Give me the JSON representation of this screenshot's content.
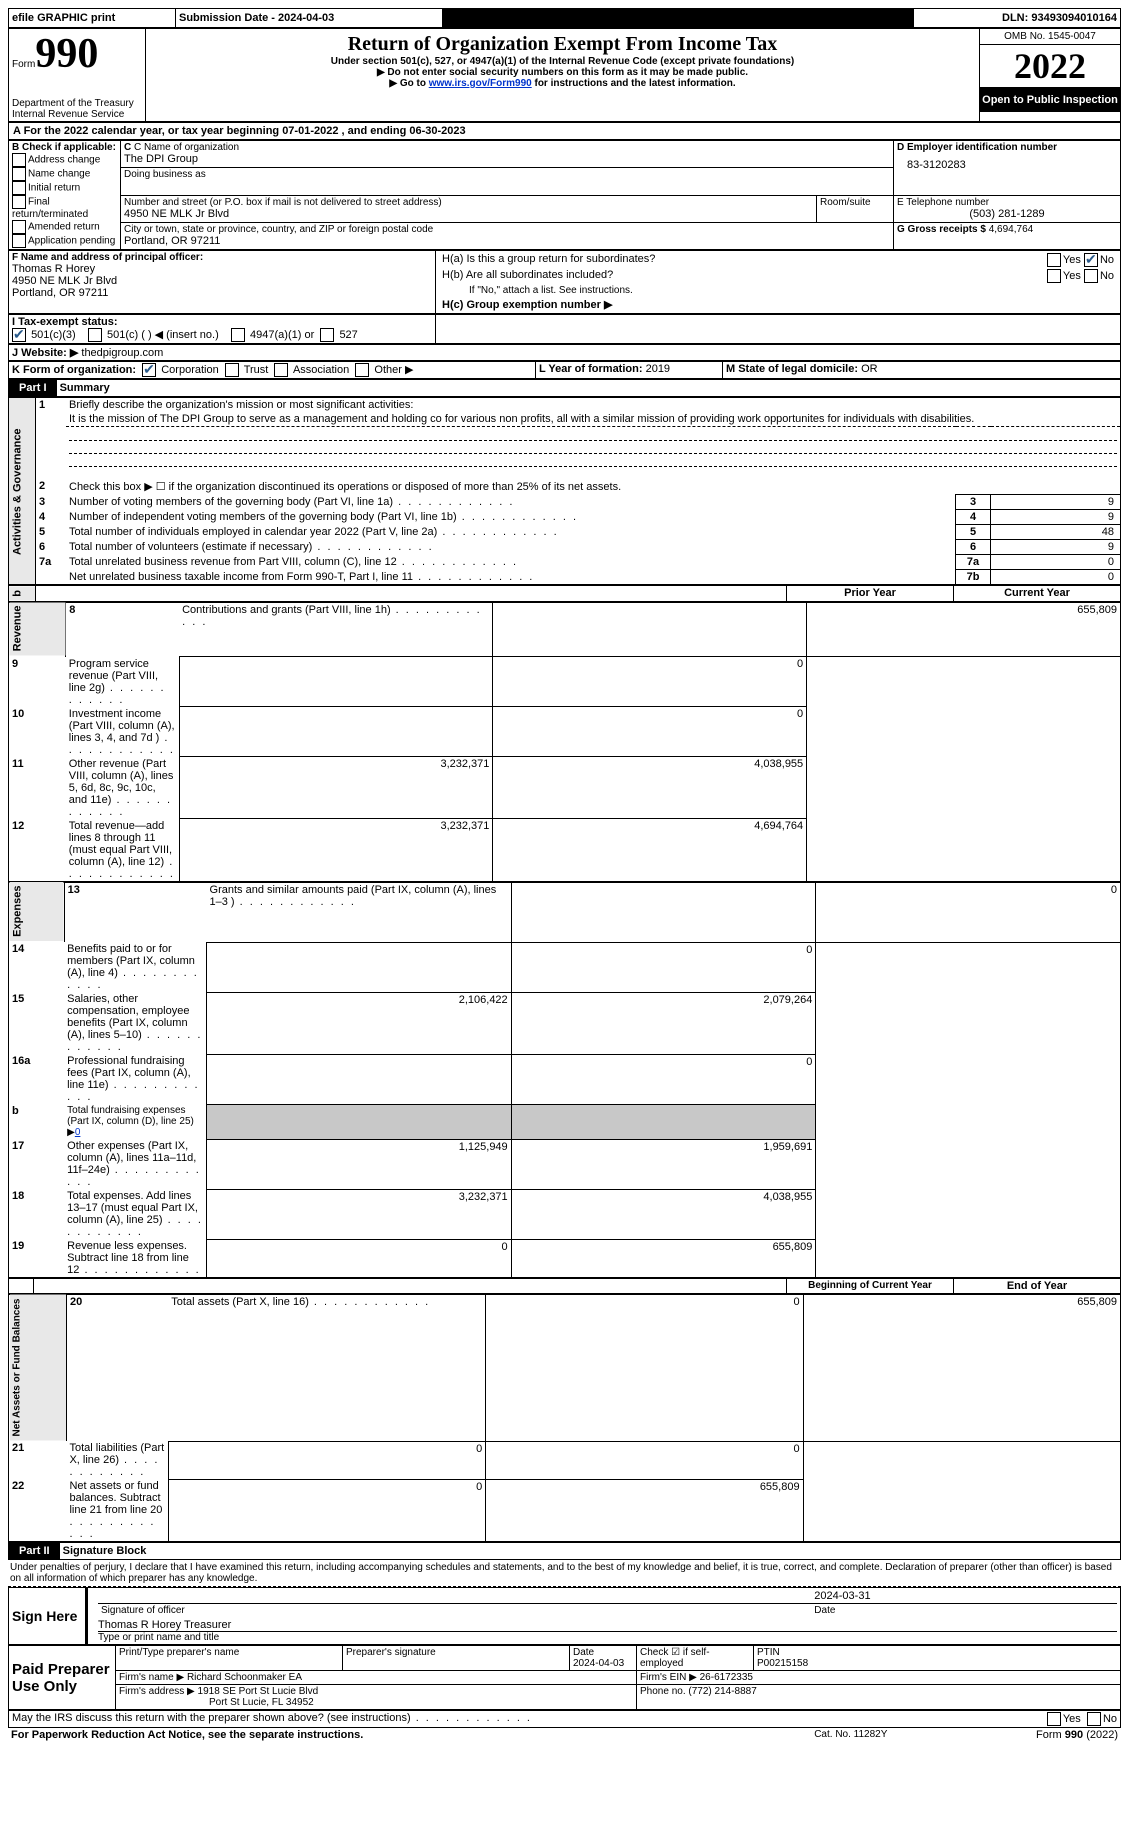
{
  "top_bar": {
    "efile": "efile GRAPHIC print",
    "submission": "Submission Date - 2024-04-03",
    "dln": "DLN: 93493094010164"
  },
  "header": {
    "form": "Form",
    "num": "990",
    "title": "Return of Organization Exempt From Income Tax",
    "sub1": "Under section 501(c), 527, or 4947(a)(1) of the Internal Revenue Code (except private foundations)",
    "sub2": "▶ Do not enter social security numbers on this form as it may be made public.",
    "sub3_pre": "▶ Go to ",
    "sub3_link": "www.irs.gov/Form990",
    "sub3_post": " for instructions and the latest information.",
    "dept": "Department of the Treasury",
    "irs": "Internal Revenue Service",
    "omb": "OMB No. 1545-0047",
    "year": "2022",
    "open": "Open to Public Inspection"
  },
  "A": {
    "line": "A For the 2022 calendar year, or tax year beginning 07-01-2022    , and ending 06-30-2023"
  },
  "B": {
    "hdr": "B Check if applicable:",
    "items": [
      "Address change",
      "Name change",
      "Initial return",
      "Final return/terminated",
      "Amended return",
      "Application pending"
    ]
  },
  "C": {
    "label": "C Name of organization",
    "name": "The DPI Group",
    "dba_label": "Doing business as",
    "street_label": "Number and street (or P.O. box if mail is not delivered to street address)",
    "room_label": "Room/suite",
    "street": "4950 NE MLK Jr Blvd",
    "city_label": "City or town, state or province, country, and ZIP or foreign postal code",
    "city": "Portland, OR  97211"
  },
  "D": {
    "label": "D Employer identification number",
    "val": "83-3120283"
  },
  "E": {
    "label": "E Telephone number",
    "val": "(503) 281-1289"
  },
  "G": {
    "label": "G Gross receipts $",
    "val": "4,694,764"
  },
  "F": {
    "label": "F  Name and address of principal officer:",
    "name": "Thomas R Horey",
    "street": "4950 NE MLK Jr Blvd",
    "city": "Portland, OR  97211"
  },
  "H": {
    "a": "H(a)  Is this a group return for subordinates?",
    "b": "H(b)  Are all subordinates included?",
    "note": "If \"No,\" attach a list. See instructions.",
    "c": "H(c)  Group exemption number ▶",
    "yes": "Yes",
    "no": "No"
  },
  "I": {
    "label": "I  Tax-exempt status:",
    "c3": "501(c)(3)",
    "c": "501(c) (  ) ◀ (insert no.)",
    "a1": "4947(a)(1) or",
    "s527": "527"
  },
  "J": {
    "label": "J  Website: ▶",
    "val": " thedpigroup.com"
  },
  "K": {
    "label": "K Form of organization:",
    "corp": "Corporation",
    "trust": "Trust",
    "assoc": "Association",
    "other": "Other ▶"
  },
  "L": {
    "label": "L Year of formation:",
    "val": "2019"
  },
  "M": {
    "label": "M State of legal domicile:",
    "val": "OR"
  },
  "part1": {
    "label": "Part I",
    "title": "Summary"
  },
  "summary": {
    "l1": "Briefly describe the organization's mission or most significant activities:",
    "mission": "It is the mission of The DPI Group to serve as a management and holding co for various non profits, all with a similar mission of providing work opportunites for individuals with disabilities.",
    "l2": "Check this box ▶ ☐  if the organization discontinued its operations or disposed of more than 25% of its net assets.",
    "rows": [
      {
        "n": "3",
        "t": "Number of voting members of the governing body (Part VI, line 1a)",
        "b": "3",
        "v": "9"
      },
      {
        "n": "4",
        "t": "Number of independent voting members of the governing body (Part VI, line 1b)",
        "b": "4",
        "v": "9"
      },
      {
        "n": "5",
        "t": "Total number of individuals employed in calendar year 2022 (Part V, line 2a)",
        "b": "5",
        "v": "48"
      },
      {
        "n": "6",
        "t": "Total number of volunteers (estimate if necessary)",
        "b": "6",
        "v": "9"
      },
      {
        "n": "7a",
        "t": "Total unrelated business revenue from Part VIII, column (C), line 12",
        "b": "7a",
        "v": "0"
      },
      {
        "n": "",
        "t": "Net unrelated business taxable income from Form 990-T, Part I, line 11",
        "b": "7b",
        "v": "0"
      }
    ]
  },
  "columns": {
    "prior": "Prior Year",
    "current": "Current Year",
    "boy": "Beginning of Current Year",
    "eoy": "End of Year"
  },
  "revenue": [
    {
      "n": "8",
      "t": "Contributions and grants (Part VIII, line 1h)",
      "p": "",
      "c": "655,809"
    },
    {
      "n": "9",
      "t": "Program service revenue (Part VIII, line 2g)",
      "p": "",
      "c": "0"
    },
    {
      "n": "10",
      "t": "Investment income (Part VIII, column (A), lines 3, 4, and 7d )",
      "p": "",
      "c": "0"
    },
    {
      "n": "11",
      "t": "Other revenue (Part VIII, column (A), lines 5, 6d, 8c, 9c, 10c, and 11e)",
      "p": "3,232,371",
      "c": "4,038,955"
    },
    {
      "n": "12",
      "t": "Total revenue—add lines 8 through 11 (must equal Part VIII, column (A), line 12)",
      "p": "3,232,371",
      "c": "4,694,764"
    }
  ],
  "expenses": [
    {
      "n": "13",
      "t": "Grants and similar amounts paid (Part IX, column (A), lines 1–3 )",
      "p": "",
      "c": "0"
    },
    {
      "n": "14",
      "t": "Benefits paid to or for members (Part IX, column (A), line 4)",
      "p": "",
      "c": "0"
    },
    {
      "n": "15",
      "t": "Salaries, other compensation, employee benefits (Part IX, column (A), lines 5–10)",
      "p": "2,106,422",
      "c": "2,079,264"
    },
    {
      "n": "16a",
      "t": "Professional fundraising fees (Part IX, column (A), line 11e)",
      "p": "",
      "c": "0"
    },
    {
      "n": "b",
      "t": "Total fundraising expenses (Part IX, column (D), line 25) ▶",
      "fund": "0",
      "gray": true
    },
    {
      "n": "17",
      "t": "Other expenses (Part IX, column (A), lines 11a–11d, 11f–24e)",
      "p": "1,125,949",
      "c": "1,959,691"
    },
    {
      "n": "18",
      "t": "Total expenses. Add lines 13–17 (must equal Part IX, column (A), line 25)",
      "p": "3,232,371",
      "c": "4,038,955"
    },
    {
      "n": "19",
      "t": "Revenue less expenses. Subtract line 18 from line 12",
      "p": "0",
      "c": "655,809"
    }
  ],
  "netassets": [
    {
      "n": "20",
      "t": "Total assets (Part X, line 16)",
      "p": "0",
      "c": "655,809"
    },
    {
      "n": "21",
      "t": "Total liabilities (Part X, line 26)",
      "p": "0",
      "c": "0"
    },
    {
      "n": "22",
      "t": "Net assets or fund balances. Subtract line 21 from line 20",
      "p": "0",
      "c": "655,809"
    }
  ],
  "part2": {
    "label": "Part II",
    "title": "Signature Block"
  },
  "sig": {
    "decl": "Under penalties of perjury, I declare that I have examined this return, including accompanying schedules and statements, and to the best of my knowledge and belief, it is true, correct, and complete. Declaration of preparer (other than officer) is based on all information of which preparer has any knowledge.",
    "sign_here": "Sign Here",
    "sig_label": "Signature of officer",
    "date_label": "Date",
    "date": "2024-03-31",
    "name": "Thomas R Horey  Treasurer",
    "name_label": "Type or print name and title"
  },
  "preparer": {
    "hdr": "Paid Preparer Use Only",
    "print_label": "Print/Type preparer's name",
    "sig_label": "Preparer's signature",
    "date_label": "Date",
    "date": "2024-04-03",
    "check_label": "Check ☑ if self-employed",
    "ptin_label": "PTIN",
    "ptin": "P00215158",
    "firm_name_label": "Firm's name    ▶",
    "firm_name": "Richard Schoonmaker EA",
    "firm_ein_label": "Firm's EIN ▶",
    "firm_ein": "26-6172335",
    "firm_addr_label": "Firm's address ▶",
    "firm_addr1": "1918 SE Port St Lucie Blvd",
    "firm_addr2": "Port St Lucie, FL  34952",
    "phone_label": "Phone no.",
    "phone": "(772) 214-8887"
  },
  "footer": {
    "discuss": "May the IRS discuss this return with the preparer shown above? (see instructions)",
    "paperwork": "For Paperwork Reduction Act Notice, see the separate instructions.",
    "cat": "Cat. No. 11282Y",
    "form": "Form 990 (2022)",
    "yes": "Yes",
    "no": "No"
  },
  "side_labels": {
    "ag": "Activities & Governance",
    "rev": "Revenue",
    "exp": "Expenses",
    "na": "Net Assets or Fund Balances",
    "b": "b"
  }
}
